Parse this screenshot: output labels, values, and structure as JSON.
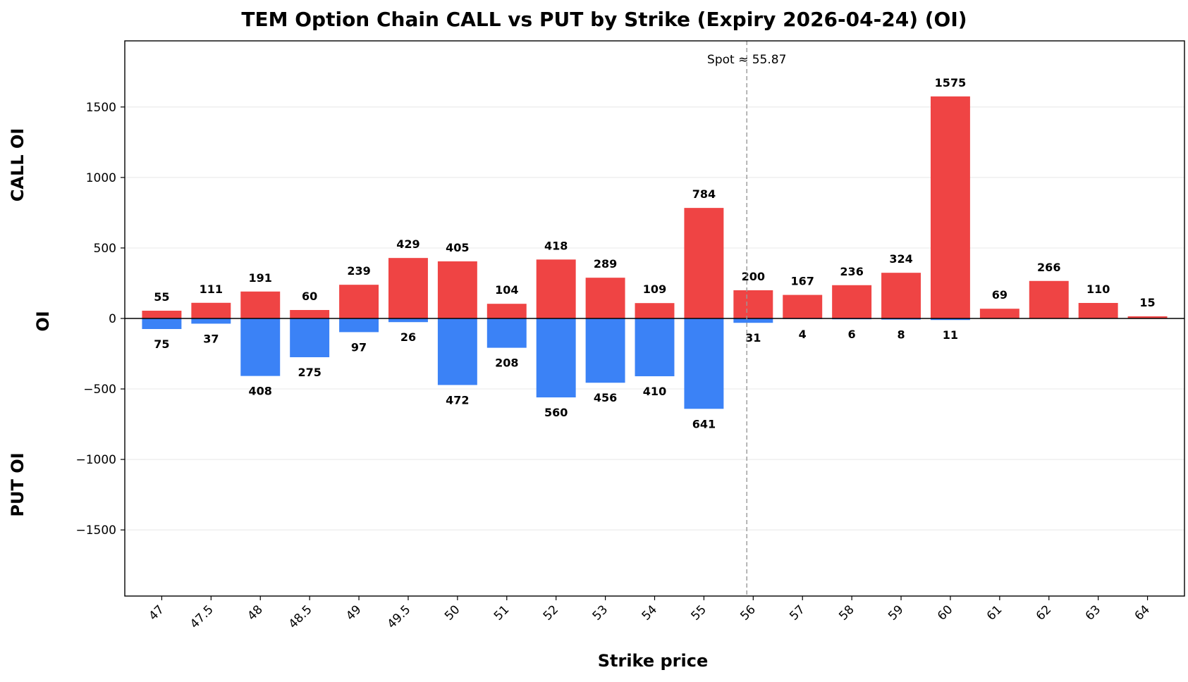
{
  "chart_data": {
    "type": "bar",
    "title": "TEM Option Chain CALL vs PUT by Strike (Expiry 2026-04-24) (OI)",
    "xlabel": "Strike price",
    "ylabel": "OI",
    "side_labels": {
      "top": "CALL OI",
      "bottom": "PUT OI"
    },
    "categories": [
      "47",
      "47.5",
      "48",
      "48.5",
      "49",
      "49.5",
      "50",
      "51",
      "52",
      "53",
      "54",
      "55",
      "56",
      "57",
      "58",
      "59",
      "60",
      "61",
      "62",
      "63",
      "64"
    ],
    "series": [
      {
        "name": "CALL OI",
        "color": "#ef4444",
        "values": [
          55,
          111,
          191,
          60,
          239,
          429,
          405,
          104,
          418,
          289,
          109,
          784,
          200,
          167,
          236,
          324,
          1575,
          69,
          266,
          110,
          15
        ]
      },
      {
        "name": "PUT OI",
        "color": "#3b82f6",
        "values": [
          75,
          37,
          408,
          275,
          97,
          26,
          472,
          208,
          560,
          456,
          410,
          641,
          31,
          4,
          6,
          8,
          11,
          0,
          0,
          0,
          0
        ]
      }
    ],
    "put_labels": [
      "75",
      "37",
      "408",
      "275",
      "97",
      "26",
      "472",
      "208",
      "560",
      "456",
      "410",
      "641",
      "31",
      "4",
      "6",
      "8",
      "11",
      "",
      "",
      "",
      ""
    ],
    "ylim": [
      -1969,
      1969
    ],
    "yticks": [
      -1500,
      -1000,
      -500,
      0,
      500,
      1000,
      1500
    ],
    "ytick_labels": [
      "−1500",
      "−1000",
      "−500",
      "0",
      "500",
      "1000",
      "1500"
    ],
    "spot": {
      "value": 55.87,
      "label": "Spot ≈ 55.87",
      "line_color": "#999999"
    },
    "grid": "horizontal",
    "legend": "none"
  }
}
